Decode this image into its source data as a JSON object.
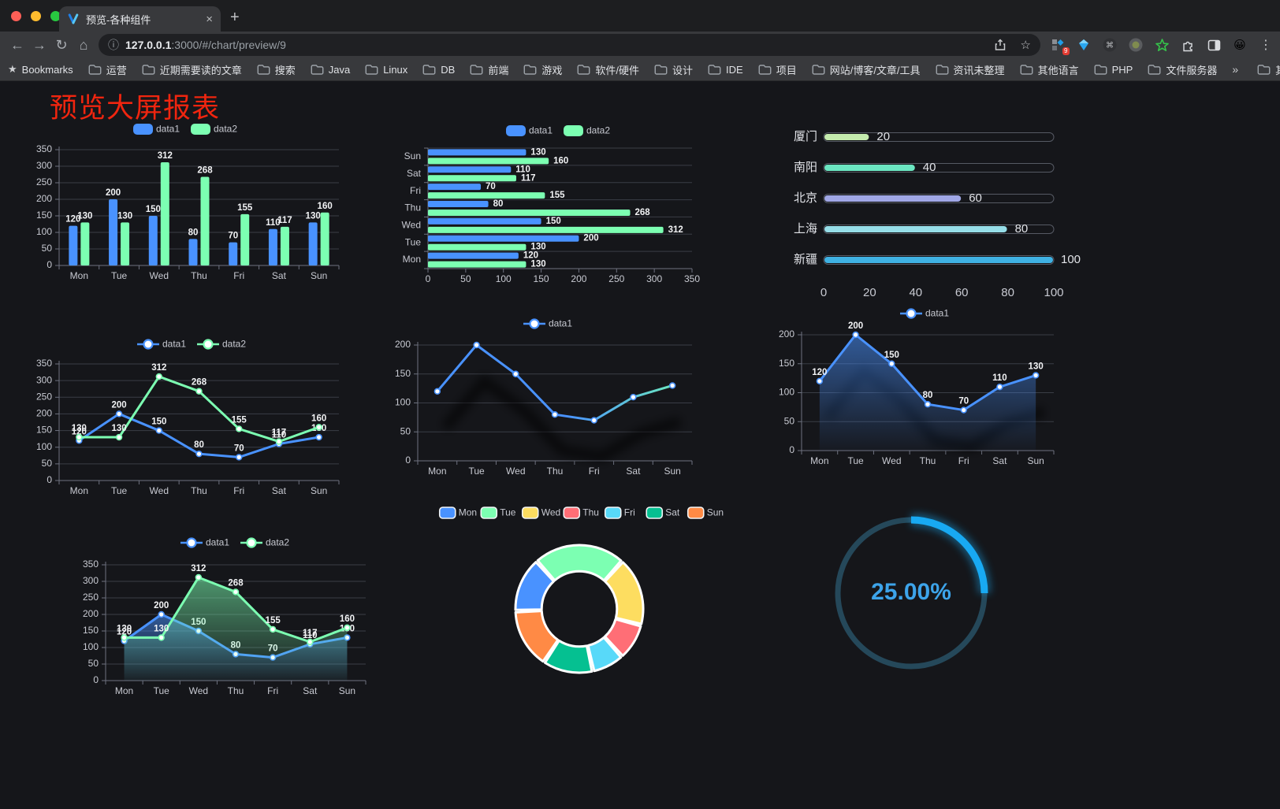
{
  "browser": {
    "tab_title": "预览-各种组件",
    "close_tab": "×",
    "new_tab": "+",
    "url_host": "127.0.0.1",
    "url_rest": ":3000/#/chart/preview/9",
    "extension_badge": "9",
    "bookmarks_label": "Bookmarks",
    "bookmarks": [
      "运营",
      "近期需要读的文章",
      "搜索",
      "Java",
      "Linux",
      "DB",
      "前端",
      "游戏",
      "软件/硬件",
      "设计",
      "IDE",
      "项目",
      "网站/博客/文章/工具",
      "资讯未整理",
      "其他语言",
      "PHP",
      "文件服务器"
    ],
    "bookmarks_overflow": "»",
    "other_bookmarks": "其他书签"
  },
  "page": {
    "title": "预览大屏报表",
    "title_color": "#f0250f",
    "background": "#15161a"
  },
  "colors": {
    "data1": "#4992ff",
    "data2": "#7cffb2",
    "grid": "#3a3d46",
    "axis": "#6e7280",
    "tick_text": "#c8cad2",
    "legend_text": "#c8cad2",
    "value_text": "#f2f3f5"
  },
  "chart_data": [
    {
      "id": "bar-vertical",
      "type": "bar",
      "categories": [
        "Mon",
        "Tue",
        "Wed",
        "Thu",
        "Fri",
        "Sat",
        "Sun"
      ],
      "series": [
        {
          "name": "data1",
          "color": "#4992ff",
          "values": [
            120,
            200,
            150,
            80,
            70,
            110,
            130
          ]
        },
        {
          "name": "data2",
          "color": "#7cffb2",
          "values": [
            130,
            130,
            312,
            268,
            155,
            117,
            160
          ]
        }
      ],
      "ylim": [
        0,
        350
      ],
      "ystep": 50,
      "legend_position": "top",
      "value_labels": true
    },
    {
      "id": "bar-horizontal",
      "type": "bar-horizontal",
      "categories_bottom_to_top": [
        "Mon",
        "Tue",
        "Wed",
        "Thu",
        "Fri",
        "Sat",
        "Sun"
      ],
      "series": [
        {
          "name": "data1",
          "color": "#4992ff",
          "values": [
            120,
            200,
            150,
            80,
            70,
            110,
            130
          ]
        },
        {
          "name": "data2",
          "color": "#7cffb2",
          "values": [
            130,
            130,
            312,
            268,
            155,
            117,
            160
          ]
        }
      ],
      "xlim": [
        0,
        350
      ],
      "xstep": 50,
      "legend_position": "top",
      "value_labels": true
    },
    {
      "id": "progress-list",
      "type": "progress",
      "xlim": [
        0,
        100
      ],
      "xticks": [
        0,
        20,
        40,
        60,
        80,
        100
      ],
      "rows": [
        {
          "label": "厦门",
          "value": 20,
          "color": "#c4ebad"
        },
        {
          "label": "南阳",
          "value": 40,
          "color": "#6be6c1"
        },
        {
          "label": "北京",
          "value": 60,
          "color": "#a0a7e6"
        },
        {
          "label": "上海",
          "value": 80,
          "color": "#96dee8"
        },
        {
          "label": "新疆",
          "value": 100,
          "color": "#3fb1e3"
        }
      ]
    },
    {
      "id": "line-two",
      "type": "line",
      "categories": [
        "Mon",
        "Tue",
        "Wed",
        "Thu",
        "Fri",
        "Sat",
        "Sun"
      ],
      "series": [
        {
          "name": "data1",
          "color": "#4992ff",
          "values": [
            120,
            200,
            150,
            80,
            70,
            110,
            130
          ],
          "labels": true
        },
        {
          "name": "data2",
          "color": "#7cffb2",
          "values": [
            130,
            130,
            312,
            268,
            155,
            117,
            160
          ],
          "labels": true
        }
      ],
      "ylim": [
        0,
        350
      ],
      "ystep": 50,
      "legend_position": "top"
    },
    {
      "id": "line-gradient",
      "type": "line",
      "categories": [
        "Mon",
        "Tue",
        "Wed",
        "Thu",
        "Fri",
        "Sat",
        "Sun"
      ],
      "series": [
        {
          "name": "data1",
          "color": "#4992ff",
          "gradient": [
            "#4992ff",
            "#6be6c1"
          ],
          "values": [
            120,
            200,
            150,
            80,
            70,
            110,
            130
          ],
          "labels": false
        }
      ],
      "ylim": [
        0,
        200
      ],
      "ystep": 50,
      "legend_position": "top",
      "shadow": true
    },
    {
      "id": "line-area",
      "type": "line",
      "categories": [
        "Mon",
        "Tue",
        "Wed",
        "Thu",
        "Fri",
        "Sat",
        "Sun"
      ],
      "series": [
        {
          "name": "data1",
          "color": "#4992ff",
          "area": true,
          "values": [
            120,
            200,
            150,
            80,
            70,
            110,
            130
          ],
          "labels": true
        }
      ],
      "ylim": [
        0,
        200
      ],
      "ystep": 50,
      "legend_position": "top",
      "shadow": true
    },
    {
      "id": "line-two-areas",
      "type": "line",
      "categories": [
        "Mon",
        "Tue",
        "Wed",
        "Thu",
        "Fri",
        "Sat",
        "Sun"
      ],
      "series": [
        {
          "name": "data1",
          "color": "#4992ff",
          "area": true,
          "values": [
            120,
            200,
            150,
            80,
            70,
            110,
            130
          ],
          "labels": true
        },
        {
          "name": "data2",
          "color": "#7cffb2",
          "area": true,
          "values": [
            130,
            130,
            312,
            268,
            155,
            117,
            160
          ],
          "labels": true
        }
      ],
      "ylim": [
        0,
        350
      ],
      "ystep": 50,
      "legend_position": "top"
    },
    {
      "id": "donut",
      "type": "pie",
      "categories": [
        "Mon",
        "Tue",
        "Wed",
        "Thu",
        "Fri",
        "Sat",
        "Sun"
      ],
      "values": [
        120,
        200,
        150,
        80,
        70,
        110,
        130
      ],
      "colors": [
        "#4992ff",
        "#7cffb2",
        "#fddd60",
        "#ff6e76",
        "#58d9f9",
        "#05c091",
        "#ff8a45"
      ],
      "legend_position": "top",
      "inner_radius_ratio": 0.59,
      "border_color": "#ffffff"
    },
    {
      "id": "gauge",
      "type": "gauge",
      "value": 25,
      "label": "25.00%",
      "color": "#18a9f2",
      "track_color": "#25485a",
      "label_color": "#3da4ea"
    }
  ]
}
